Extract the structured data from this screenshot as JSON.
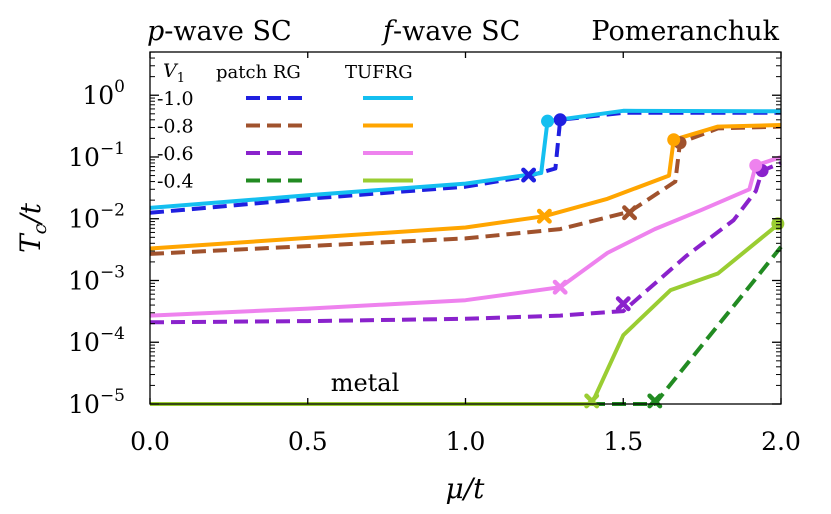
{
  "chart_data": {
    "type": "line",
    "xlabel": "μ/t",
    "ylabel": "Tc/t",
    "yscale": "log",
    "xlim": [
      0.0,
      2.0
    ],
    "ylim_log10": [
      -5,
      0.7
    ],
    "x_ticks": [
      {
        "value": 0.0,
        "label": "0.0"
      },
      {
        "value": 0.5,
        "label": "0.5"
      },
      {
        "value": 1.0,
        "label": "1.0"
      },
      {
        "value": 1.5,
        "label": "1.5"
      },
      {
        "value": 2.0,
        "label": "2.0"
      }
    ],
    "y_ticks": [
      {
        "exp": 0,
        "base": "10",
        "sup": "0"
      },
      {
        "exp": -1,
        "base": "10",
        "sup": "−1"
      },
      {
        "exp": -2,
        "base": "10",
        "sup": "−2"
      },
      {
        "exp": -3,
        "base": "10",
        "sup": "−3"
      },
      {
        "exp": -4,
        "base": "10",
        "sup": "−4"
      },
      {
        "exp": -5,
        "base": "10",
        "sup": "−5"
      }
    ],
    "region_labels": [
      {
        "italic": "p",
        "rest": "-wave SC"
      },
      {
        "italic": "f",
        "rest": "-wave SC"
      },
      {
        "italic": "",
        "rest": "Pomeranchuk"
      }
    ],
    "annotation": "metal",
    "legend": {
      "v_label_base": "V",
      "v_label_sub": "1",
      "col1": "patch RG",
      "col2": "TUFRG",
      "rows": [
        "-1.0",
        "-0.8",
        "-0.6",
        "-0.4"
      ]
    },
    "series": [
      {
        "name": "patch RG V1=-1.0",
        "style": "dashed",
        "color": "#1f1fe0",
        "points": [
          [
            0.0,
            0.0125
          ],
          [
            0.5,
            0.021
          ],
          [
            1.0,
            0.033
          ],
          [
            1.2,
            0.049
          ],
          [
            1.285,
            0.065
          ],
          [
            1.3,
            0.4
          ],
          [
            1.5,
            0.52
          ],
          [
            2.0,
            0.52
          ]
        ],
        "markers": [
          {
            "x": 1.2,
            "y": 0.051,
            "shape": "x"
          },
          {
            "x": 1.3,
            "y": 0.4,
            "shape": "o"
          }
        ]
      },
      {
        "name": "TUFRG V1=-1.0",
        "style": "solid",
        "color": "#14bff0",
        "points": [
          [
            0.0,
            0.015
          ],
          [
            0.5,
            0.024
          ],
          [
            1.0,
            0.037
          ],
          [
            1.24,
            0.055
          ],
          [
            1.26,
            0.38
          ],
          [
            1.5,
            0.56
          ],
          [
            2.0,
            0.55
          ]
        ],
        "markers": [
          {
            "x": 1.26,
            "y": 0.38,
            "shape": "o"
          }
        ]
      },
      {
        "name": "patch RG V1=-0.8",
        "style": "dashed",
        "color": "#a0522d",
        "points": [
          [
            0.0,
            0.0027
          ],
          [
            0.5,
            0.0036
          ],
          [
            1.0,
            0.0048
          ],
          [
            1.3,
            0.0068
          ],
          [
            1.52,
            0.013
          ],
          [
            1.665,
            0.04
          ],
          [
            1.68,
            0.17
          ],
          [
            1.8,
            0.29
          ],
          [
            2.0,
            0.31
          ]
        ],
        "markers": [
          {
            "x": 1.52,
            "y": 0.0125,
            "shape": "x"
          },
          {
            "x": 1.68,
            "y": 0.17,
            "shape": "o"
          }
        ]
      },
      {
        "name": "TUFRG V1=-0.8",
        "style": "solid",
        "color": "#ffa500",
        "points": [
          [
            0.0,
            0.0033
          ],
          [
            0.5,
            0.0049
          ],
          [
            1.0,
            0.0072
          ],
          [
            1.25,
            0.011
          ],
          [
            1.45,
            0.021
          ],
          [
            1.645,
            0.05
          ],
          [
            1.66,
            0.19
          ],
          [
            1.8,
            0.31
          ],
          [
            2.0,
            0.33
          ]
        ],
        "markers": [
          {
            "x": 1.25,
            "y": 0.011,
            "shape": "x"
          },
          {
            "x": 1.66,
            "y": 0.19,
            "shape": "o"
          }
        ]
      },
      {
        "name": "patch RG V1=-0.6",
        "style": "dashed",
        "color": "#8a22cc",
        "points": [
          [
            0.0,
            0.00021
          ],
          [
            0.5,
            0.00022
          ],
          [
            1.0,
            0.00024
          ],
          [
            1.3,
            0.00027
          ],
          [
            1.5,
            0.00032
          ],
          [
            1.7,
            0.0025
          ],
          [
            1.85,
            0.0095
          ],
          [
            1.92,
            0.028
          ],
          [
            1.94,
            0.06
          ],
          [
            2.0,
            0.08
          ]
        ],
        "markers": [
          {
            "x": 1.5,
            "y": 0.00042,
            "shape": "x"
          },
          {
            "x": 1.94,
            "y": 0.06,
            "shape": "o"
          }
        ]
      },
      {
        "name": "TUFRG V1=-0.6",
        "style": "solid",
        "color": "#ee82ee",
        "points": [
          [
            0.0,
            0.00027
          ],
          [
            0.5,
            0.00035
          ],
          [
            1.0,
            0.00048
          ],
          [
            1.3,
            0.00078
          ],
          [
            1.45,
            0.0028
          ],
          [
            1.6,
            0.0068
          ],
          [
            1.75,
            0.014
          ],
          [
            1.9,
            0.03
          ],
          [
            1.92,
            0.073
          ],
          [
            2.0,
            0.1
          ]
        ],
        "markers": [
          {
            "x": 1.3,
            "y": 0.00078,
            "shape": "x"
          },
          {
            "x": 1.92,
            "y": 0.073,
            "shape": "o"
          }
        ]
      },
      {
        "name": "patch RG V1=-0.4",
        "style": "dashed",
        "color": "#228b22",
        "points": [
          [
            0.0,
            1e-05
          ],
          [
            1.0,
            1e-05
          ],
          [
            1.6,
            1e-05
          ],
          [
            1.75,
            9e-05
          ],
          [
            1.9,
            0.0008
          ],
          [
            2.0,
            0.0035
          ]
        ],
        "markers": [
          {
            "x": 1.6,
            "y": 1.12e-05,
            "shape": "x"
          }
        ]
      },
      {
        "name": "TUFRG V1=-0.4",
        "style": "solid",
        "color": "#9acd32",
        "points": [
          [
            0.0,
            1e-05
          ],
          [
            1.0,
            1e-05
          ],
          [
            1.4,
            1e-05
          ],
          [
            1.5,
            0.00013
          ],
          [
            1.65,
            0.0007
          ],
          [
            1.8,
            0.0013
          ],
          [
            1.99,
            0.008
          ]
        ],
        "markers": [
          {
            "x": 1.4,
            "y": 1.12e-05,
            "shape": "x"
          },
          {
            "x": 1.99,
            "y": 0.0083,
            "shape": "o"
          }
        ]
      }
    ]
  }
}
